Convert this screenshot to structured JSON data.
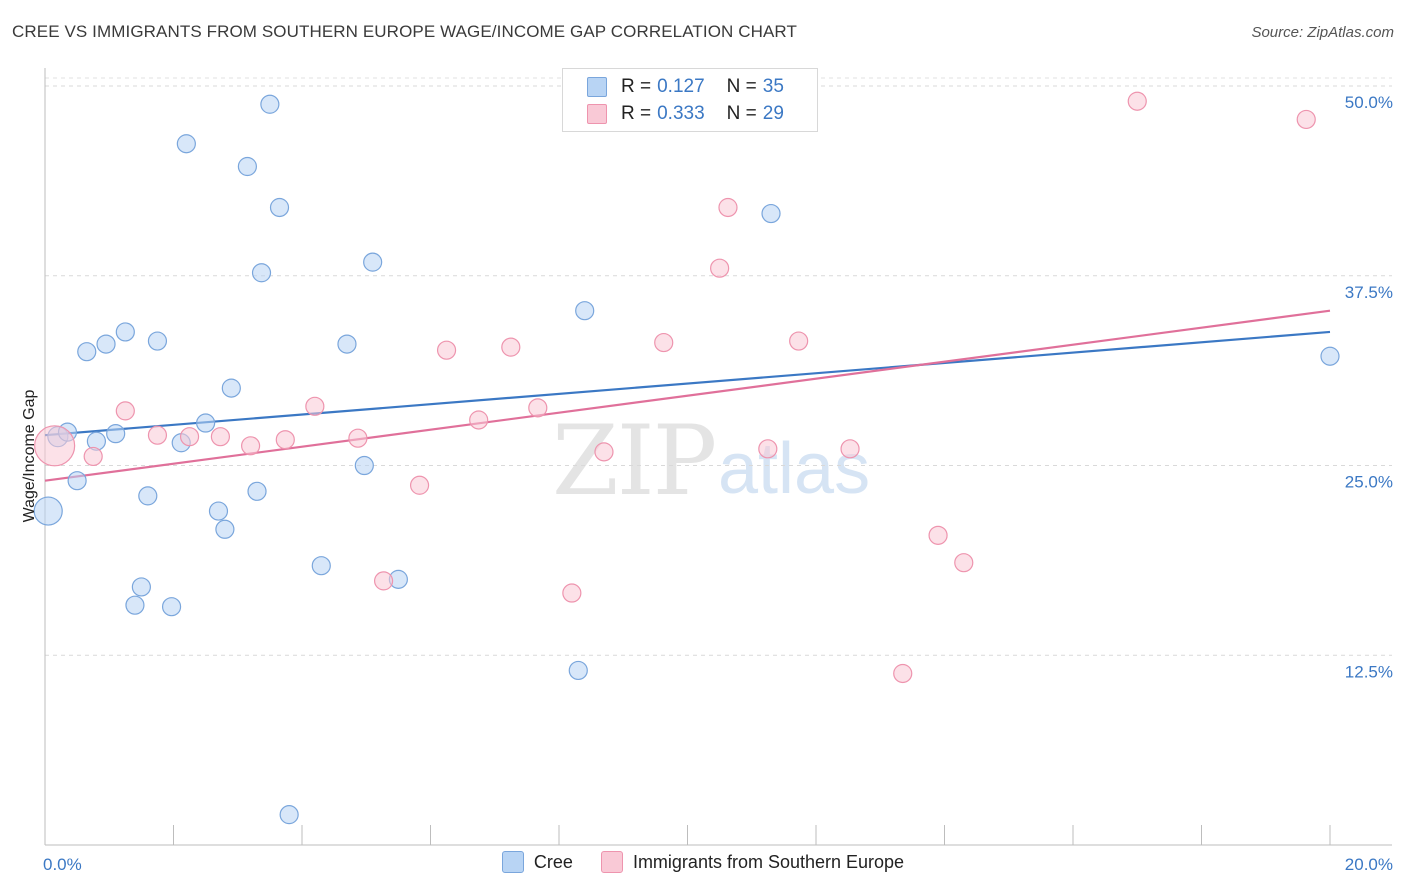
{
  "header": {
    "title": "CREE VS IMMIGRANTS FROM SOUTHERN EUROPE WAGE/INCOME GAP CORRELATION CHART",
    "source": "Source: ZipAtlas.com"
  },
  "watermark": {
    "zip": "ZIP",
    "atlas": "atlas"
  },
  "legend": {
    "rows": [
      {
        "r_label": "R =",
        "r_value": "0.127",
        "n_label": "N =",
        "n_value": "35",
        "color": "#b8d4f4"
      },
      {
        "r_label": "R =",
        "r_value": "0.333",
        "n_label": "N =",
        "n_value": "29",
        "color": "#f9c9d6"
      }
    ]
  },
  "bottom_legend": {
    "items": [
      {
        "label": "Cree",
        "color": "#b8d4f4"
      },
      {
        "label": "Immigrants from Southern Europe",
        "color": "#f9c9d6"
      }
    ]
  },
  "chart_data": {
    "type": "scatter",
    "title": "CREE VS IMMIGRANTS FROM SOUTHERN EUROPE WAGE/INCOME GAP CORRELATION CHART",
    "xlabel": "",
    "ylabel": "Wage/Income Gap",
    "xlim": [
      0,
      20
    ],
    "ylim": [
      0,
      50
    ],
    "x_tick_labels": [
      "0.0%",
      "20.0%"
    ],
    "y_ticks": [
      12.5,
      25.0,
      37.5,
      50.0
    ],
    "y_tick_labels": [
      "12.5%",
      "25.0%",
      "37.5%",
      "50.0%"
    ],
    "grid": true,
    "legend_position": "top-center",
    "series": [
      {
        "name": "Cree",
        "color": "#b8d4f4",
        "edge": "#7aa6dc",
        "line_color": "#3b78c4",
        "trend": {
          "x": [
            0,
            20
          ],
          "y": [
            27.0,
            33.8
          ]
        },
        "points": [
          [
            0.05,
            22.0,
            14
          ],
          [
            0.2,
            26.9,
            10
          ],
          [
            0.35,
            27.2,
            9
          ],
          [
            0.5,
            24.0,
            9
          ],
          [
            0.65,
            32.5,
            9
          ],
          [
            0.8,
            26.6,
            9
          ],
          [
            0.95,
            33.0,
            9
          ],
          [
            1.1,
            27.1,
            9
          ],
          [
            1.25,
            33.8,
            9
          ],
          [
            1.4,
            15.8,
            9
          ],
          [
            1.5,
            17.0,
            9
          ],
          [
            1.6,
            23.0,
            9
          ],
          [
            1.75,
            33.2,
            9
          ],
          [
            1.97,
            15.7,
            9
          ],
          [
            2.12,
            26.5,
            9
          ],
          [
            2.2,
            46.2,
            9
          ],
          [
            2.5,
            27.8,
            9
          ],
          [
            2.7,
            22.0,
            9
          ],
          [
            2.8,
            20.8,
            9
          ],
          [
            2.9,
            30.1,
            9
          ],
          [
            3.15,
            44.7,
            9
          ],
          [
            3.3,
            23.3,
            9
          ],
          [
            3.37,
            37.7,
            9
          ],
          [
            3.5,
            48.8,
            9
          ],
          [
            3.65,
            42.0,
            9
          ],
          [
            3.8,
            2.0,
            9
          ],
          [
            4.3,
            18.4,
            9
          ],
          [
            4.7,
            33.0,
            9
          ],
          [
            4.97,
            25.0,
            9
          ],
          [
            5.1,
            38.4,
            9
          ],
          [
            5.5,
            17.5,
            9
          ],
          [
            8.3,
            11.5,
            9
          ],
          [
            8.4,
            35.2,
            9
          ],
          [
            11.3,
            41.6,
            9
          ],
          [
            20.0,
            32.2,
            9
          ]
        ]
      },
      {
        "name": "Immigrants from Southern Europe",
        "color": "#f9c9d6",
        "edge": "#ee94ae",
        "line_color": "#e0709a",
        "trend": {
          "x": [
            0,
            20
          ],
          "y": [
            24.0,
            35.2
          ]
        },
        "points": [
          [
            0.15,
            26.3,
            20
          ],
          [
            0.75,
            25.6,
            9
          ],
          [
            1.25,
            28.6,
            9
          ],
          [
            1.75,
            27.0,
            9
          ],
          [
            2.25,
            26.9,
            9
          ],
          [
            2.73,
            26.9,
            9
          ],
          [
            3.2,
            26.3,
            9
          ],
          [
            3.74,
            26.7,
            9
          ],
          [
            4.2,
            28.9,
            9
          ],
          [
            4.87,
            26.8,
            9
          ],
          [
            5.27,
            17.4,
            9
          ],
          [
            5.83,
            23.7,
            9
          ],
          [
            6.25,
            32.6,
            9
          ],
          [
            6.75,
            28.0,
            9
          ],
          [
            7.25,
            32.8,
            9
          ],
          [
            7.67,
            28.8,
            9
          ],
          [
            8.2,
            16.6,
            9
          ],
          [
            8.7,
            25.9,
            9
          ],
          [
            9.63,
            33.1,
            9
          ],
          [
            10.5,
            38.0,
            9
          ],
          [
            10.63,
            42.0,
            9
          ],
          [
            11.25,
            26.1,
            9
          ],
          [
            11.73,
            33.2,
            9
          ],
          [
            12.53,
            26.1,
            9
          ],
          [
            13.35,
            11.3,
            9
          ],
          [
            13.9,
            20.4,
            9
          ],
          [
            14.3,
            18.6,
            9
          ],
          [
            17.0,
            49.0,
            9
          ],
          [
            19.63,
            47.8,
            9
          ]
        ]
      }
    ]
  }
}
